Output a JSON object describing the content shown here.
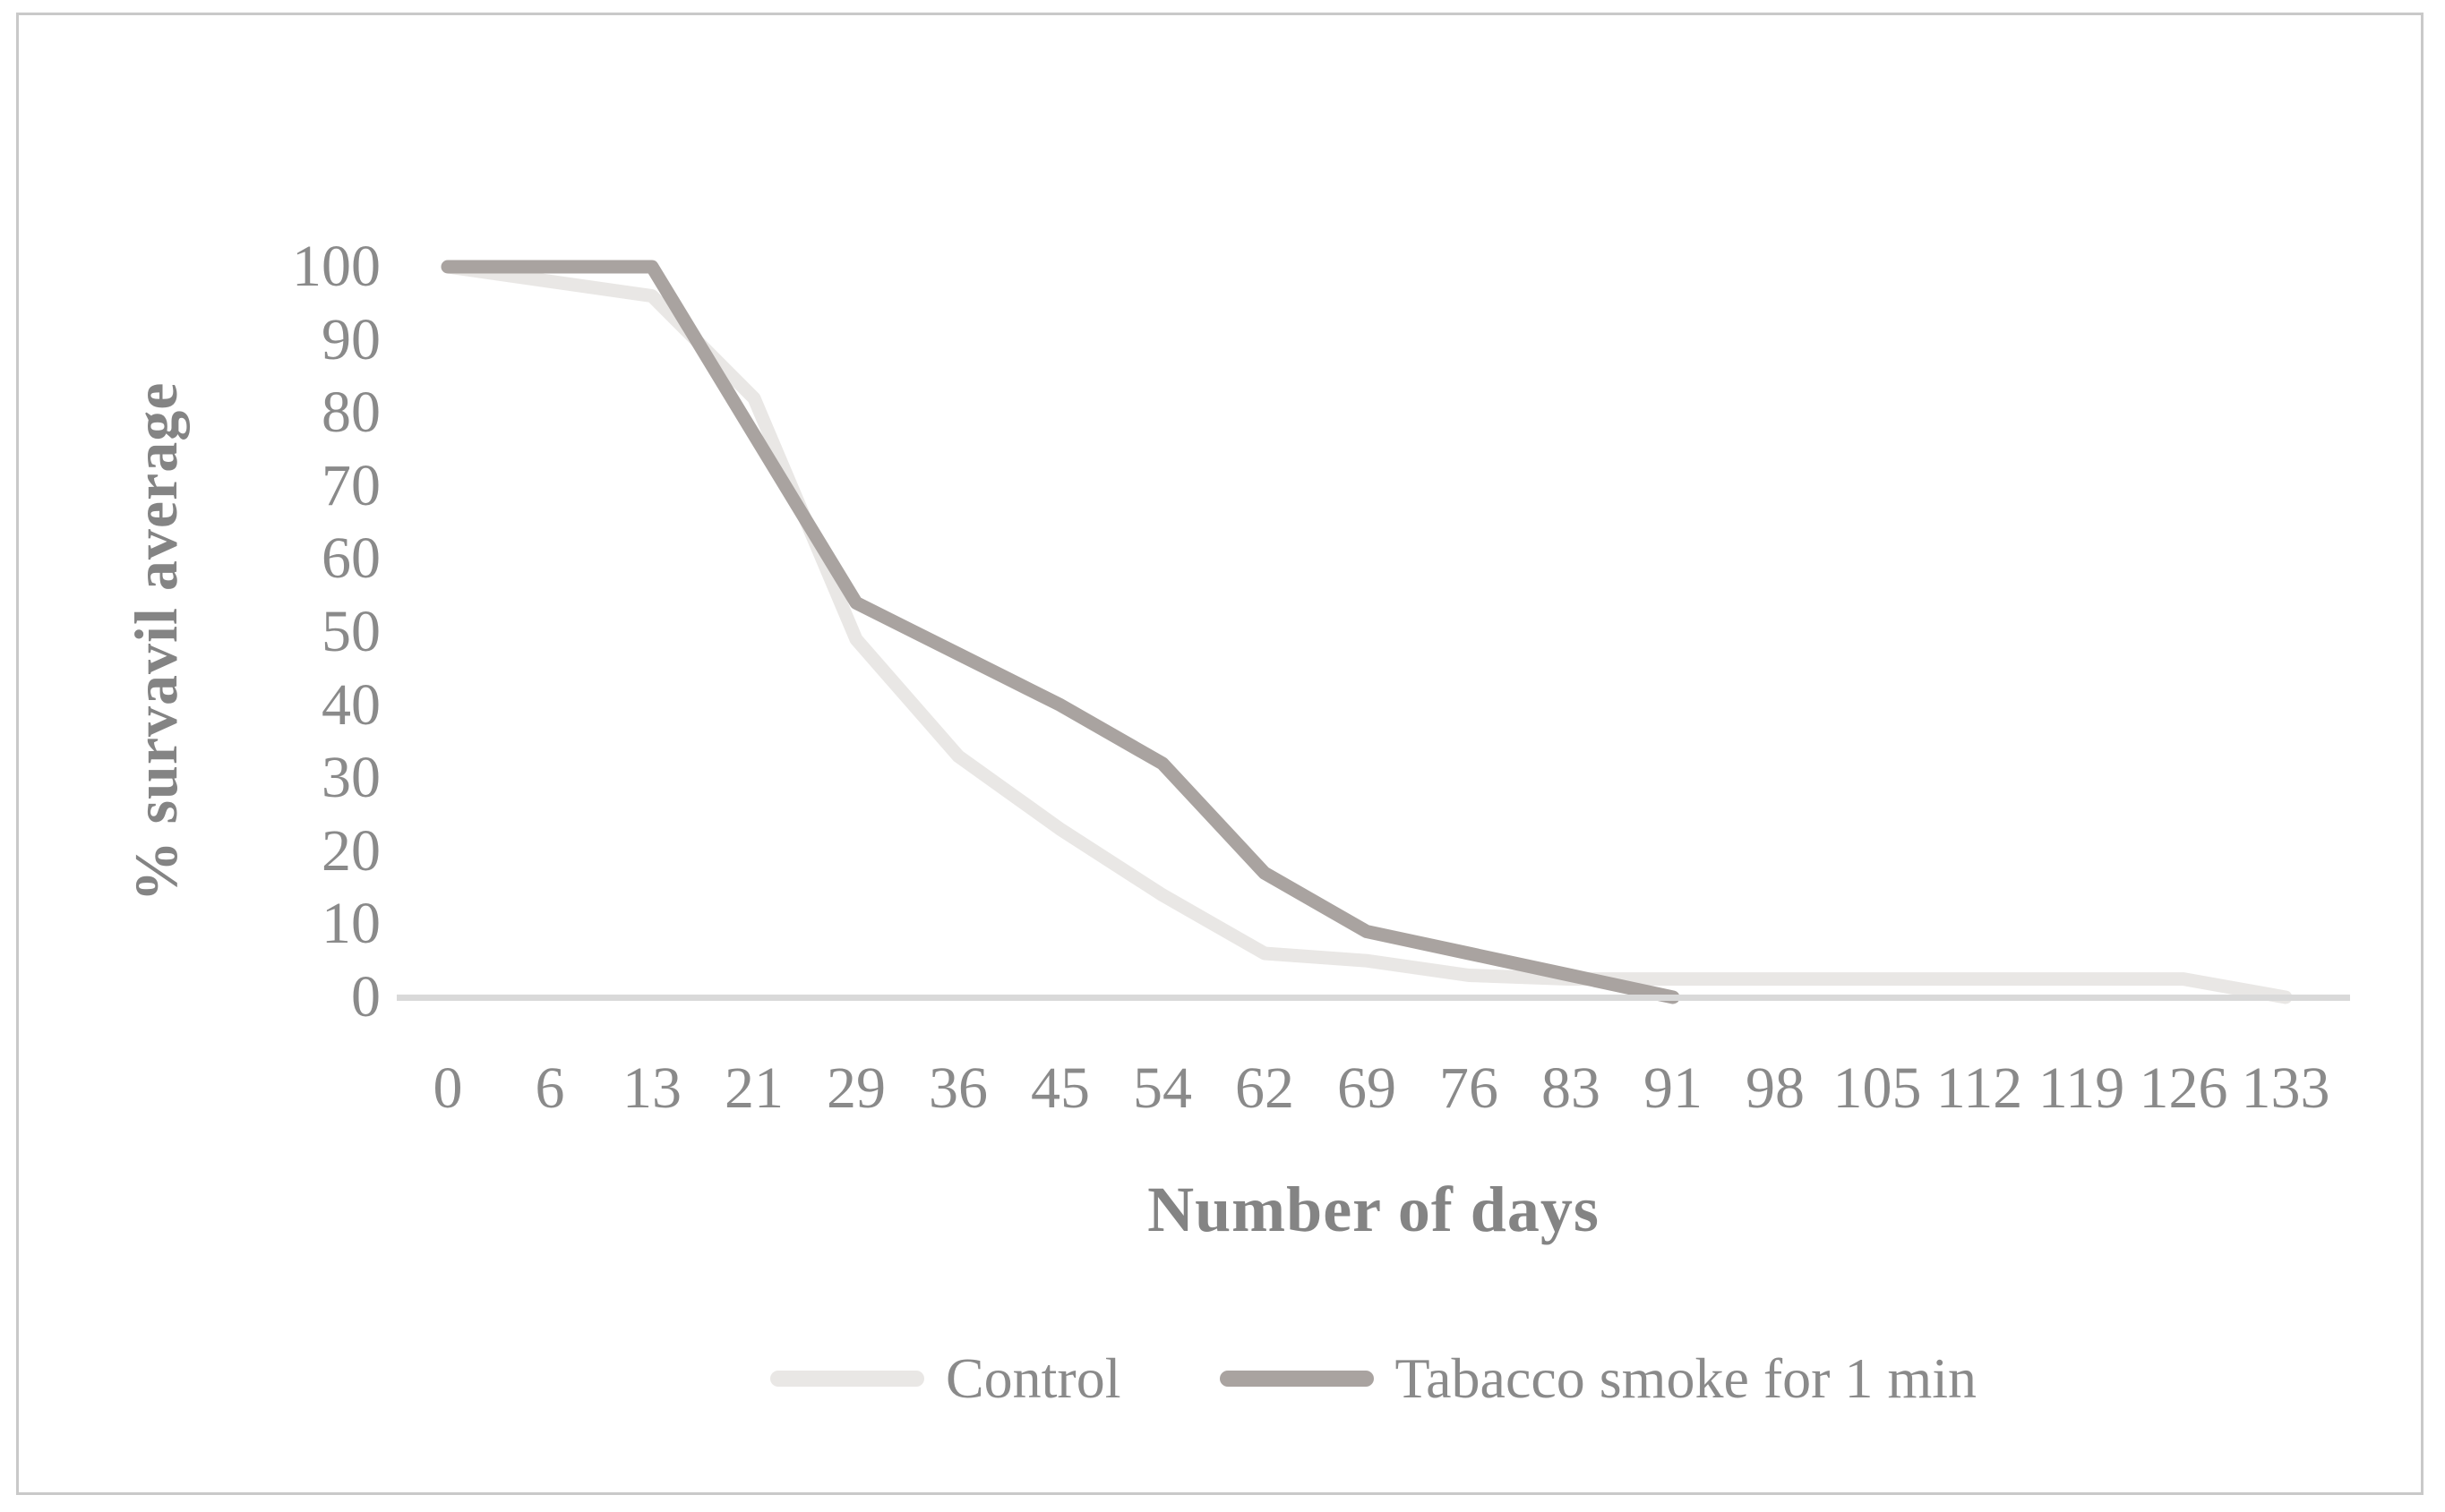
{
  "chart_data": {
    "type": "line",
    "title": "",
    "xlabel": "Number of days",
    "ylabel": "% survavil average",
    "categories": [
      "0",
      "6",
      "13",
      "21",
      "29",
      "36",
      "45",
      "54",
      "62",
      "69",
      "76",
      "83",
      "91",
      "98",
      "105",
      "112",
      "119",
      "126",
      "133"
    ],
    "y_ticks": [
      "0",
      "10",
      "20",
      "30",
      "40",
      "50",
      "60",
      "70",
      "80",
      "90",
      "100"
    ],
    "ylim": [
      0,
      100
    ],
    "grid": false,
    "legend_position": "bottom-center",
    "axis_line_color": "#d9d9d9",
    "text_color": "#8a8a8a",
    "series": [
      {
        "name": "Control",
        "color": "#e9e7e5",
        "values": [
          100,
          98,
          96,
          82,
          49,
          33,
          23,
          14,
          6,
          5,
          3,
          2.5,
          2.5,
          2.5,
          2.5,
          2.5,
          2.5,
          2.5,
          0
        ]
      },
      {
        "name": "Tabacco smoke for 1 min",
        "color": "#a9a3a0",
        "values": [
          100,
          100,
          100,
          77,
          54,
          47,
          40,
          32,
          17,
          9,
          6,
          3,
          0,
          null,
          null,
          null,
          null,
          null,
          null
        ]
      }
    ]
  }
}
